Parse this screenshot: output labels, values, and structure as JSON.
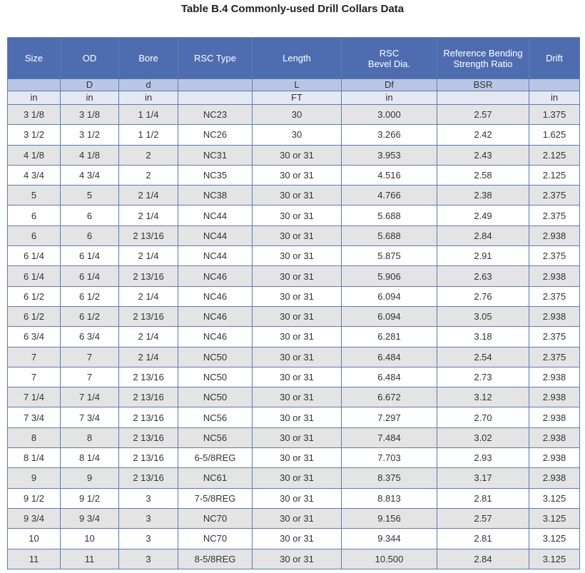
{
  "title": "Table B.4 Commonly-used Drill Collars Data",
  "table": {
    "header": [
      "Size",
      "OD",
      "Bore",
      "RSC Type",
      "Length",
      "RSC\nBevel Dia.",
      "Reference Bending\nStrength Ratio",
      "Drift"
    ],
    "symbols": [
      null,
      "D",
      "d",
      null,
      "L",
      "Df",
      "BSR",
      null
    ],
    "units": [
      "in",
      "in",
      "in",
      null,
      "FT",
      "in",
      null,
      "in"
    ],
    "rows": [
      [
        "3 1/8",
        "3 1/8",
        "1  1/4",
        "NC23",
        "30",
        "3.000",
        "2.57",
        "1.375"
      ],
      [
        "3 1/2",
        "3 1/2",
        "1  1/2",
        "NC26",
        "30",
        "3.266",
        "2.42",
        "1.625"
      ],
      [
        "4 1/8",
        "4 1/8",
        "2",
        "NC31",
        "30 or 31",
        "3.953",
        "2.43",
        "2.125"
      ],
      [
        "4 3/4",
        "4 3/4",
        "2",
        "NC35",
        "30 or 31",
        "4.516",
        "2.58",
        "2.125"
      ],
      [
        "5",
        "5",
        "2  1/4",
        "NC38",
        "30 or 31",
        "4.766",
        "2.38",
        "2.375"
      ],
      [
        "6",
        "6",
        "2  1/4",
        "NC44",
        "30 or 31",
        "5.688",
        "2.49",
        "2.375"
      ],
      [
        "6",
        "6",
        "2 13/16",
        "NC44",
        "30 or 31",
        "5.688",
        "2.84",
        "2.938"
      ],
      [
        "6 1/4",
        "6 1/4",
        "2  1/4",
        "NC44",
        "30 or 31",
        "5.875",
        "2.91",
        "2.375"
      ],
      [
        "6 1/4",
        "6 1/4",
        "2 13/16",
        "NC46",
        "30 or 31",
        "5.906",
        "2.63",
        "2.938"
      ],
      [
        "6 1/2",
        "6 1/2",
        "2  1/4",
        "NC46",
        "30 or 31",
        "6.094",
        "2.76",
        "2.375"
      ],
      [
        "6 1/2",
        "6 1/2",
        "2 13/16",
        "NC46",
        "30 or 31",
        "6.094",
        "3.05",
        "2.938"
      ],
      [
        "6 3/4",
        "6 3/4",
        "2  1/4",
        "NC46",
        "30 or 31",
        "6.281",
        "3.18",
        "2.375"
      ],
      [
        "7",
        "7",
        "2  1/4",
        "NC50",
        "30 or 31",
        "6.484",
        "2.54",
        "2.375"
      ],
      [
        "7",
        "7",
        "2 13/16",
        "NC50",
        "30 or 31",
        "6.484",
        "2.73",
        "2.938"
      ],
      [
        "7 1/4",
        "7 1/4",
        "2 13/16",
        "NC50",
        "30 or 31",
        "6.672",
        "3.12",
        "2.938"
      ],
      [
        "7 3/4",
        "7 3/4",
        "2 13/16",
        "NC56",
        "30 or 31",
        "7.297",
        "2.70",
        "2.938"
      ],
      [
        "8",
        "8",
        "2 13/16",
        "NC56",
        "30 or 31",
        "7.484",
        "3.02",
        "2.938"
      ],
      [
        "8 1/4",
        "8 1/4",
        "2 13/16",
        "6-5/8REG",
        "30 or 31",
        "7.703",
        "2.93",
        "2.938"
      ],
      [
        "9",
        "9",
        "2 13/16",
        "NC61",
        "30 or 31",
        "8.375",
        "3.17",
        "2.938"
      ],
      [
        "9 1/2",
        "9 1/2",
        "3",
        "7-5/8REG",
        "30 or 31",
        "8.813",
        "2.81",
        "3.125"
      ],
      [
        "9 3/4",
        "9 3/4",
        "3",
        "NC70",
        "30 or 31",
        "9.156",
        "2.57",
        "3.125"
      ],
      [
        "10",
        "10",
        "3",
        "NC70",
        "30 or 31",
        "9.344",
        "2.81",
        "3.125"
      ],
      [
        "11",
        "11",
        "3",
        "8-5/8REG",
        "30 or 31",
        "10.500",
        "2.84",
        "3.125"
      ]
    ]
  }
}
